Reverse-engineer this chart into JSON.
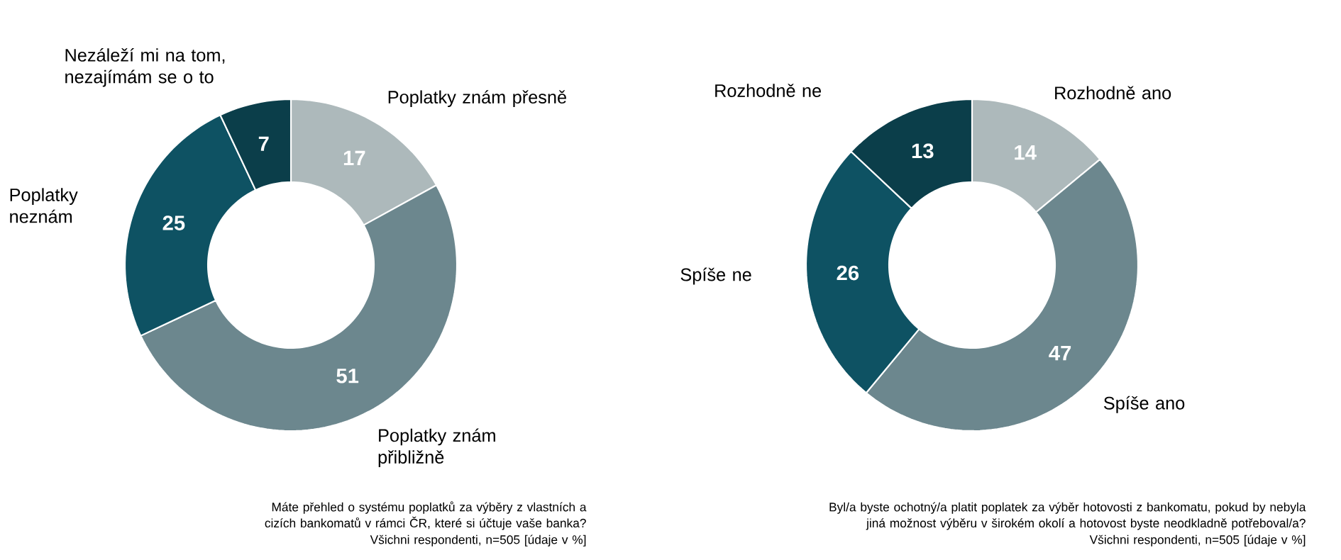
{
  "chart_data": [
    {
      "type": "donut",
      "categories": [
        "Poplatky znám přesně",
        "Poplatky znám přibližně",
        "Poplatky neznám",
        "Nezáleží mi na tom, nezajímám se o to"
      ],
      "values": [
        17,
        51,
        25,
        7
      ],
      "colors": [
        "#adb9bb",
        "#6c878e",
        "#0e5263",
        "#0b3e4a"
      ],
      "data_labels": true,
      "annotations": [
        "Máte přehled o systému poplatků za výběry z vlastních a cizích bankomatů v rámci ČR, které si účtuje vaše banka?",
        "Všichni respondenti, n=505 [údaje v %]"
      ]
    },
    {
      "type": "donut",
      "categories": [
        "Rozhodně ano",
        "Spíše ano",
        "Spíše ne",
        "Rozhodně ne"
      ],
      "values": [
        14,
        47,
        26,
        13
      ],
      "colors": [
        "#adb9bb",
        "#6c878e",
        "#0e5263",
        "#0b3e4a"
      ],
      "data_labels": true,
      "annotations": [
        "Byl/a byste ochotný/a platit poplatek za výběr hotovosti z bankomatu, pokud by nebyla jiná možnost výběru v širokém okolí a hotovost byste neodkladně potřeboval/a?",
        "Všichni respondenti, n=505 [údaje v %]"
      ]
    }
  ]
}
